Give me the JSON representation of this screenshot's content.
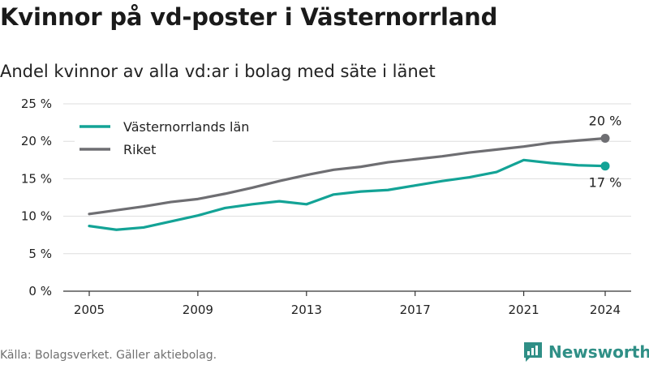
{
  "title": "Kvinnor på vd-poster i Västernorrland",
  "subtitle": "Andel kvinnor av alla vd:ar i bolag med säte i länet",
  "source": "Källa: Bolagsverket. Gäller aktiebolag.",
  "brand": {
    "name": "Newsworthy",
    "logo_icon": "bar-chart-speech-bubble-icon",
    "color": "#2f8f86"
  },
  "chart_data": {
    "type": "line",
    "x": [
      2005,
      2006,
      2007,
      2008,
      2009,
      2010,
      2011,
      2012,
      2013,
      2014,
      2015,
      2016,
      2017,
      2018,
      2019,
      2020,
      2021,
      2022,
      2023,
      2024
    ],
    "xticks": [
      2005,
      2009,
      2013,
      2017,
      2021,
      2024
    ],
    "xtick_labels": [
      "2005",
      "2009",
      "2013",
      "2017",
      "2021",
      "2024"
    ],
    "xlim": [
      2005,
      2024
    ],
    "ylim": [
      0,
      25
    ],
    "yticks": [
      0,
      5,
      10,
      15,
      20,
      25
    ],
    "ytick_labels": [
      "0 %",
      "5 %",
      "10 %",
      "15 %",
      "20 %",
      "25 %"
    ],
    "grid": true,
    "legend_position": "top-left",
    "series": [
      {
        "name": "Västernorrlands län",
        "color": "#13a396",
        "values": [
          8.7,
          8.2,
          8.5,
          9.3,
          10.1,
          11.1,
          11.6,
          12.0,
          11.6,
          12.9,
          13.3,
          13.5,
          14.1,
          14.7,
          15.2,
          15.9,
          17.5,
          17.1,
          16.8,
          16.7
        ],
        "end_label": "17 %",
        "end_label_position": "below"
      },
      {
        "name": "Riket",
        "color": "#6e6e72",
        "values": [
          10.3,
          10.8,
          11.3,
          11.9,
          12.3,
          13.0,
          13.8,
          14.7,
          15.5,
          16.2,
          16.6,
          17.2,
          17.6,
          18.0,
          18.5,
          18.9,
          19.3,
          19.8,
          20.1,
          20.4
        ],
        "end_label": "20 %",
        "end_label_position": "above"
      }
    ]
  }
}
